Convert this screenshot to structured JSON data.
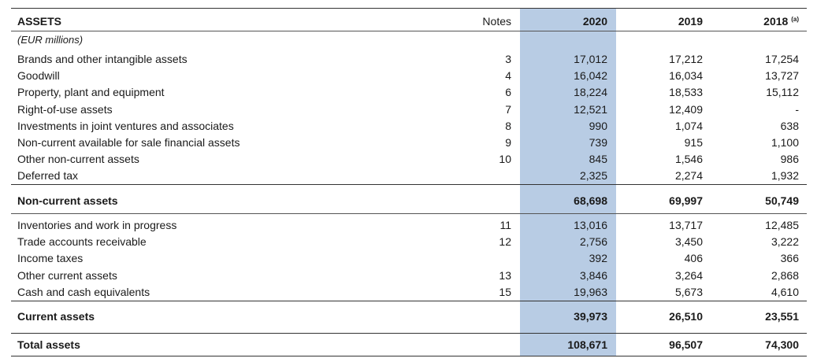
{
  "header": {
    "title": "ASSETS",
    "notes": "Notes",
    "y2020": "2020",
    "y2019": "2019",
    "y2018": "2018",
    "y2018_sup": "(a)",
    "unit": "(EUR millions)"
  },
  "noncurrent_rows": [
    {
      "label": "Brands and other intangible assets",
      "note": "3",
      "v2020": "17,012",
      "v2019": "17,212",
      "v2018": "17,254"
    },
    {
      "label": "Goodwill",
      "note": "4",
      "v2020": "16,042",
      "v2019": "16,034",
      "v2018": "13,727"
    },
    {
      "label": "Property, plant and equipment",
      "note": "6",
      "v2020": "18,224",
      "v2019": "18,533",
      "v2018": "15,112"
    },
    {
      "label": "Right-of-use assets",
      "note": "7",
      "v2020": "12,521",
      "v2019": "12,409",
      "v2018": "-"
    },
    {
      "label": "Investments in joint ventures and associates",
      "note": "8",
      "v2020": "990",
      "v2019": "1,074",
      "v2018": "638"
    },
    {
      "label": "Non-current available for sale financial assets",
      "note": "9",
      "v2020": "739",
      "v2019": "915",
      "v2018": "1,100"
    },
    {
      "label": "Other non-current assets",
      "note": "10",
      "v2020": "845",
      "v2019": "1,546",
      "v2018": "986"
    },
    {
      "label": "Deferred tax",
      "note": "",
      "v2020": "2,325",
      "v2019": "2,274",
      "v2018": "1,932"
    }
  ],
  "noncurrent_total": {
    "label": "Non-current assets",
    "v2020": "68,698",
    "v2019": "69,997",
    "v2018": "50,749"
  },
  "current_rows": [
    {
      "label": "Inventories and work in progress",
      "note": "11",
      "v2020": "13,016",
      "v2019": "13,717",
      "v2018": "12,485"
    },
    {
      "label": "Trade accounts receivable",
      "note": "12",
      "v2020": "2,756",
      "v2019": "3,450",
      "v2018": "3,222"
    },
    {
      "label": "Income taxes",
      "note": "",
      "v2020": "392",
      "v2019": "406",
      "v2018": "366"
    },
    {
      "label": "Other current assets",
      "note": "13",
      "v2020": "3,846",
      "v2019": "3,264",
      "v2018": "2,868"
    },
    {
      "label": "Cash and cash equivalents",
      "note": "15",
      "v2020": "19,963",
      "v2019": "5,673",
      "v2018": "4,610"
    }
  ],
  "current_total": {
    "label": "Current assets",
    "v2020": "39,973",
    "v2019": "26,510",
    "v2018": "23,551"
  },
  "grand_total": {
    "label": "Total assets",
    "v2020": "108,671",
    "v2019": "96,507",
    "v2018": "74,300"
  }
}
